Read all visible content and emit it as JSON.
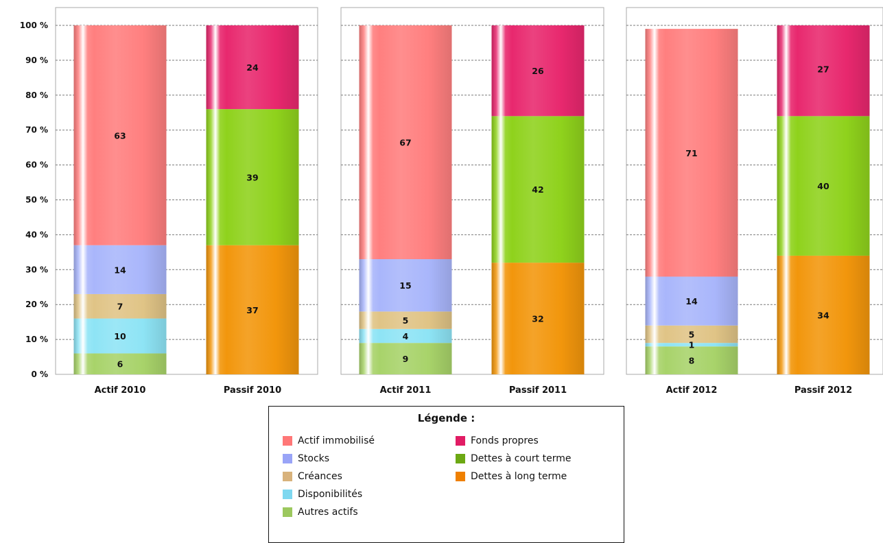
{
  "chart_data": {
    "type": "bar",
    "stacked": true,
    "ylim": [
      0,
      100
    ],
    "y_ticks": [
      {
        "value": 0,
        "label": "0 %"
      },
      {
        "value": 10,
        "label": "10 %"
      },
      {
        "value": 20,
        "label": "20 %"
      },
      {
        "value": 30,
        "label": "30 %"
      },
      {
        "value": 40,
        "label": "40 %"
      },
      {
        "value": 50,
        "label": "50 %"
      },
      {
        "value": 60,
        "label": "60 %"
      },
      {
        "value": 70,
        "label": "70 %"
      },
      {
        "value": 80,
        "label": "80 %"
      },
      {
        "value": 90,
        "label": "90 %"
      },
      {
        "value": 100,
        "label": "100 %"
      }
    ],
    "grid": true,
    "legend_position": "bottom",
    "panels": [
      {
        "year": "2010",
        "bars": [
          {
            "category": "Actif 2010",
            "segments": [
              {
                "series": "Autres actifs",
                "value": 6,
                "label": "6"
              },
              {
                "series": "Disponibilités",
                "value": 10,
                "label": "10"
              },
              {
                "series": "Créances",
                "value": 7,
                "label": "7"
              },
              {
                "series": "Stocks",
                "value": 14,
                "label": "14"
              },
              {
                "series": "Actif immobilisé",
                "value": 63,
                "label": "63"
              }
            ]
          },
          {
            "category": "Passif 2010",
            "segments": [
              {
                "series": "Dettes à long terme",
                "value": 37,
                "label": "37"
              },
              {
                "series": "Dettes à court terme",
                "value": 39,
                "label": "39"
              },
              {
                "series": "Fonds propres",
                "value": 24,
                "label": "24"
              }
            ]
          }
        ]
      },
      {
        "year": "2011",
        "bars": [
          {
            "category": "Actif 2011",
            "segments": [
              {
                "series": "Autres actifs",
                "value": 9,
                "label": "9"
              },
              {
                "series": "Disponibilités",
                "value": 4,
                "label": "4"
              },
              {
                "series": "Créances",
                "value": 5,
                "label": "5"
              },
              {
                "series": "Stocks",
                "value": 15,
                "label": "15"
              },
              {
                "series": "Actif immobilisé",
                "value": 67,
                "label": "67"
              }
            ]
          },
          {
            "category": "Passif 2011",
            "segments": [
              {
                "series": "Dettes à long terme",
                "value": 32,
                "label": "32"
              },
              {
                "series": "Dettes à court terme",
                "value": 42,
                "label": "42"
              },
              {
                "series": "Fonds propres",
                "value": 26,
                "label": "26"
              }
            ]
          }
        ]
      },
      {
        "year": "2012",
        "bars": [
          {
            "category": "Actif 2012",
            "segments": [
              {
                "series": "Autres actifs",
                "value": 8,
                "label": "8"
              },
              {
                "series": "Disponibilités",
                "value": 1,
                "label": "1"
              },
              {
                "series": "Créances",
                "value": 5,
                "label": "5"
              },
              {
                "series": "Stocks",
                "value": 14,
                "label": "14"
              },
              {
                "series": "Actif immobilisé",
                "value": 71,
                "label": "71"
              }
            ]
          },
          {
            "category": "Passif 2012",
            "segments": [
              {
                "series": "Dettes à long terme",
                "value": 34,
                "label": "34"
              },
              {
                "series": "Dettes à court terme",
                "value": 40,
                "label": "40"
              },
              {
                "series": "Fonds propres",
                "value": 27,
                "label": "27"
              }
            ]
          }
        ]
      }
    ],
    "series_colors": {
      "Autres actifs": "#a8d36a",
      "Disponibilités": "#8ee4f5",
      "Créances": "#e0c486",
      "Stocks": "#a9b6fb",
      "Actif immobilisé": "#ff7f7f",
      "Dettes à long terme": "#f2960c",
      "Dettes à court terme": "#8fd21c",
      "Fonds propres": "#e8286e"
    },
    "legend": {
      "title": "Légende :",
      "items": [
        {
          "label": "Actif immobilisé",
          "color": "#ff7777"
        },
        {
          "label": "Stocks",
          "color": "#99a4f7"
        },
        {
          "label": "Créances",
          "color": "#d8b27c"
        },
        {
          "label": "Disponibilités",
          "color": "#7ed8f0"
        },
        {
          "label": "Autres actifs",
          "color": "#9cc85e"
        },
        {
          "label": "Fonds propres",
          "color": "#e11c64"
        },
        {
          "label": "Dettes à court terme",
          "color": "#6ca813"
        },
        {
          "label": "Dettes à long terme",
          "color": "#ef8000"
        }
      ]
    }
  }
}
